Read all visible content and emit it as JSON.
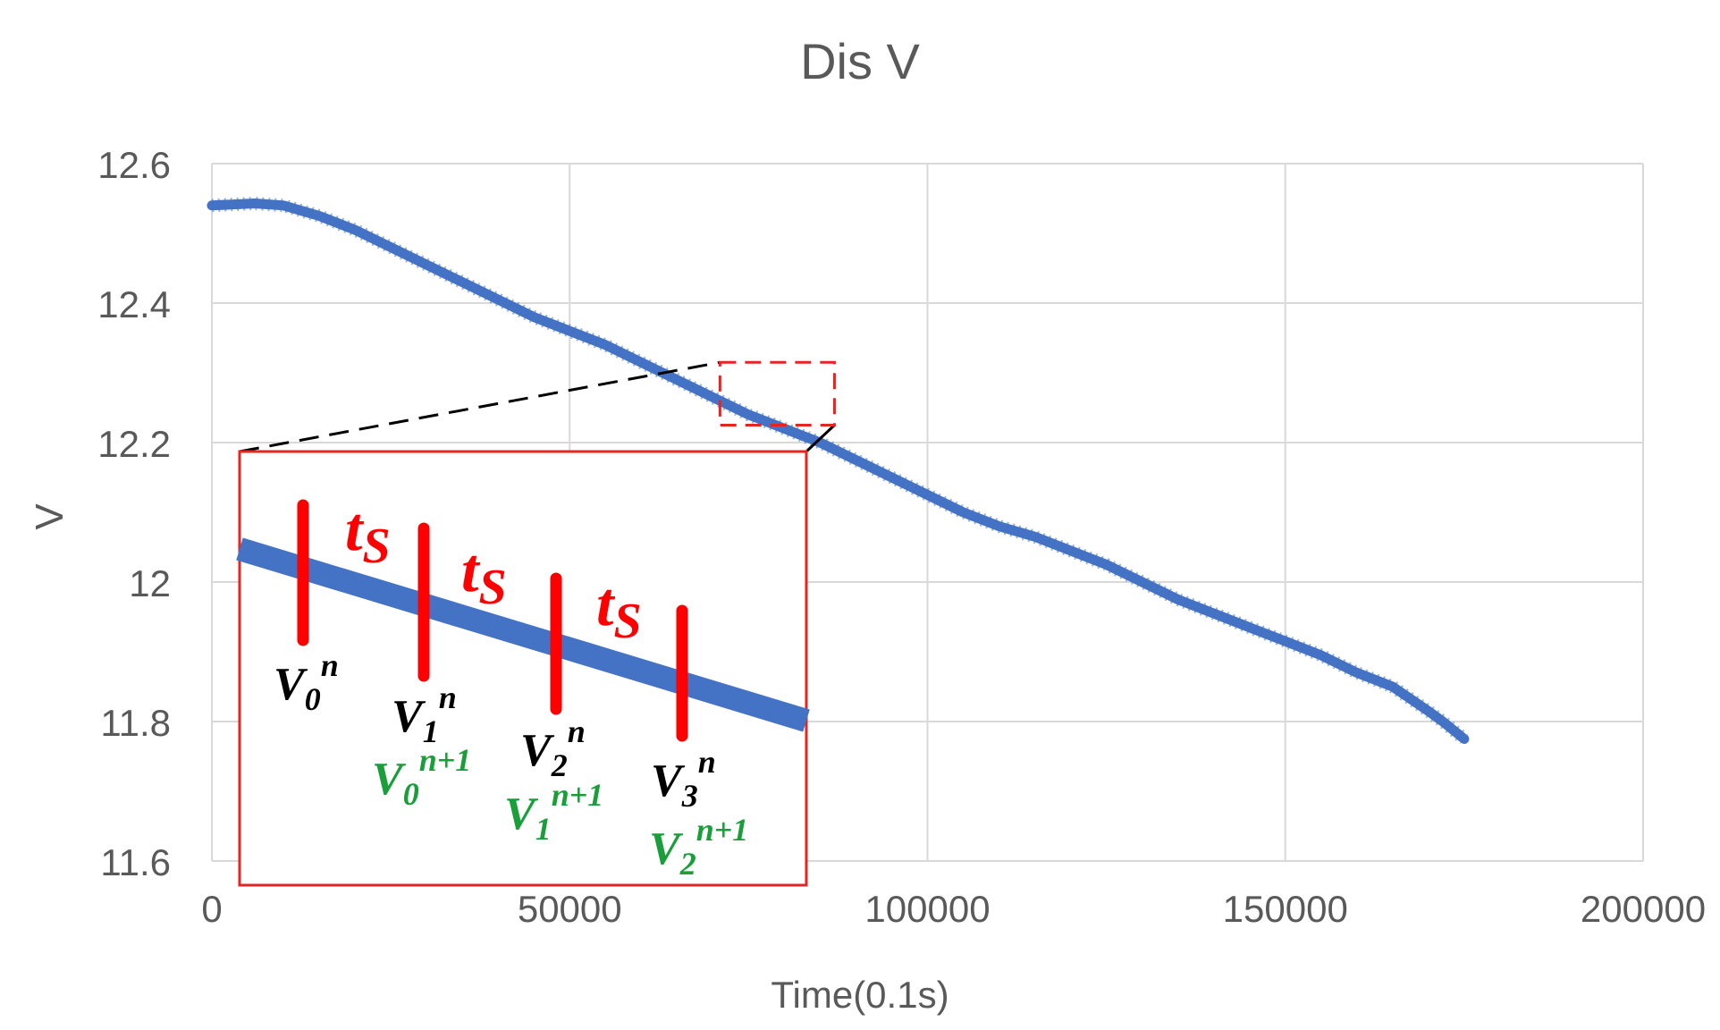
{
  "chart_data": {
    "type": "line",
    "title": "Dis V",
    "xlabel": "Time(0.1s)",
    "ylabel": "V",
    "xlim": [
      0,
      200000
    ],
    "ylim": [
      11.6,
      12.6
    ],
    "x_ticks": [
      0,
      50000,
      100000,
      150000,
      200000
    ],
    "x_tick_labels": [
      "0",
      "50000",
      "100000",
      "150000",
      "200000"
    ],
    "y_ticks": [
      11.6,
      11.8,
      12.0,
      12.2,
      12.4,
      12.6
    ],
    "y_tick_labels": [
      "11.6",
      "11.8",
      "12",
      "12.2",
      "12.4",
      "12.6"
    ],
    "grid": true,
    "series": [
      {
        "name": "Dis V",
        "color": "#4472c4",
        "points": [
          [
            0,
            12.54
          ],
          [
            6000,
            12.543
          ],
          [
            10000,
            12.54
          ],
          [
            15000,
            12.525
          ],
          [
            20000,
            12.505
          ],
          [
            25000,
            12.48
          ],
          [
            30000,
            12.455
          ],
          [
            35000,
            12.43
          ],
          [
            40000,
            12.405
          ],
          [
            45000,
            12.38
          ],
          [
            50000,
            12.36
          ],
          [
            55000,
            12.34
          ],
          [
            60000,
            12.315
          ],
          [
            65000,
            12.29
          ],
          [
            70000,
            12.265
          ],
          [
            75000,
            12.24
          ],
          [
            80000,
            12.22
          ],
          [
            85000,
            12.2
          ],
          [
            90000,
            12.175
          ],
          [
            95000,
            12.15
          ],
          [
            100000,
            12.125
          ],
          [
            105000,
            12.1
          ],
          [
            110000,
            12.08
          ],
          [
            115000,
            12.065
          ],
          [
            120000,
            12.045
          ],
          [
            125000,
            12.025
          ],
          [
            130000,
            12.0
          ],
          [
            135000,
            11.975
          ],
          [
            140000,
            11.955
          ],
          [
            145000,
            11.935
          ],
          [
            150000,
            11.915
          ],
          [
            155000,
            11.895
          ],
          [
            160000,
            11.87
          ],
          [
            165000,
            11.85
          ],
          [
            170000,
            11.815
          ],
          [
            172000,
            11.8
          ],
          [
            175000,
            11.775
          ]
        ]
      }
    ],
    "zoom_box": {
      "x_range": [
        71000,
        87000
      ],
      "y_range": [
        12.225,
        12.315
      ]
    },
    "inset": {
      "annotations": {
        "interval": "t",
        "interval_sub": "S",
        "v_letter": "V",
        "n_sup": "n",
        "n1_sup": "n+1",
        "black_subs": [
          "0",
          "1",
          "2",
          "3"
        ],
        "green_subs": [
          "0",
          "1",
          "2"
        ]
      }
    },
    "colors": {
      "line": "#4472c4",
      "grid": "#d9d9d9",
      "box": "#e52521",
      "marker": "#ff0000",
      "green": "#1a9e3a",
      "text": "#595959"
    }
  }
}
